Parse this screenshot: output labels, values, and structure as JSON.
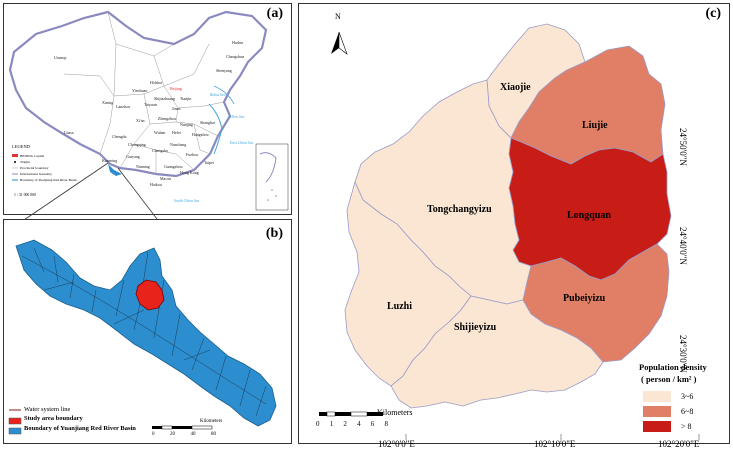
{
  "panel_a": {
    "label": "(a)",
    "places": [
      "Urumqi",
      "Lhasa",
      "Xining",
      "Lanzhou",
      "Yinchuan",
      "Hohhot",
      "Beijing",
      "Tianjin",
      "Shijiazhuang",
      "Taiyuan",
      "Jinan",
      "Zhengzhou",
      "Xi'an",
      "Chengdu",
      "Chongqing",
      "Wuhan",
      "Changsha",
      "Nanjing",
      "Shanghai",
      "Hangzhou",
      "Fuzhou",
      "Taipei",
      "Guangzhou",
      "Nanning",
      "Haikou",
      "Kunming",
      "Guiyang",
      "Hefei",
      "Nanchang",
      "Harbin",
      "Changchun",
      "Shenyang",
      "Hong Kong",
      "Macau"
    ],
    "legend_title": "LEGEND",
    "legend_items": [
      "BEIJING  Capital",
      "Tianjin",
      "Provincial boundary",
      "International boundary",
      "Boundary of Yuanjiang Red River Basin"
    ],
    "scale": "1 : 31 000 000",
    "sea_labels": [
      "Bohai Sea",
      "Yellow Sea",
      "East China Sea",
      "South China Sea"
    ]
  },
  "panel_b": {
    "label": "(b)",
    "legend": [
      {
        "name": "Water system line",
        "color": "#8b1a1a",
        "type": "line"
      },
      {
        "name": "Study area boundary",
        "color": "#e8231c",
        "type": "box"
      },
      {
        "name": "Boundary of Yuanjiang Red River Basin",
        "color": "#2c8ecf",
        "type": "box"
      }
    ],
    "scale_unit": "Kilometers",
    "scale_ticks": [
      "0",
      "20",
      "40",
      "80"
    ],
    "basin_color": "#2c8ecf",
    "study_color": "#e8231c"
  },
  "panel_c": {
    "label": "(c)",
    "north": "N",
    "towns": [
      {
        "name": "Xiaojie",
        "class": "3~6"
      },
      {
        "name": "Liujie",
        "class": "6~8"
      },
      {
        "name": "Tongchangyizu",
        "class": "3~6"
      },
      {
        "name": "Longquan",
        "class": "> 8"
      },
      {
        "name": "Luzhi",
        "class": "3~6"
      },
      {
        "name": "Shijieyizu",
        "class": "3~6"
      },
      {
        "name": "Pubeiyizu",
        "class": "6~8"
      }
    ],
    "legend_title_1": "Population density",
    "legend_title_2": "( person / km² )",
    "legend": [
      {
        "label": "3~6",
        "color": "#fae6d3"
      },
      {
        "label": "6~8",
        "color": "#e07f66"
      },
      {
        "label": "> 8",
        "color": "#c81c17"
      }
    ],
    "scale_unit": "Kilometers",
    "scale_ticks": [
      "0",
      "1",
      "2",
      "4",
      "6",
      "8"
    ],
    "lon_labels": [
      "102°0'0\"E",
      "102°10'0\"E",
      "102°20'0\"E"
    ],
    "lat_labels": [
      "24°50'0\"N",
      "24°40'0\"N",
      "24°30'0\"N"
    ]
  },
  "colors": {
    "low": "#fae6d3",
    "mid": "#e07f66",
    "high": "#c81c17",
    "border": "#9b9bc8"
  }
}
